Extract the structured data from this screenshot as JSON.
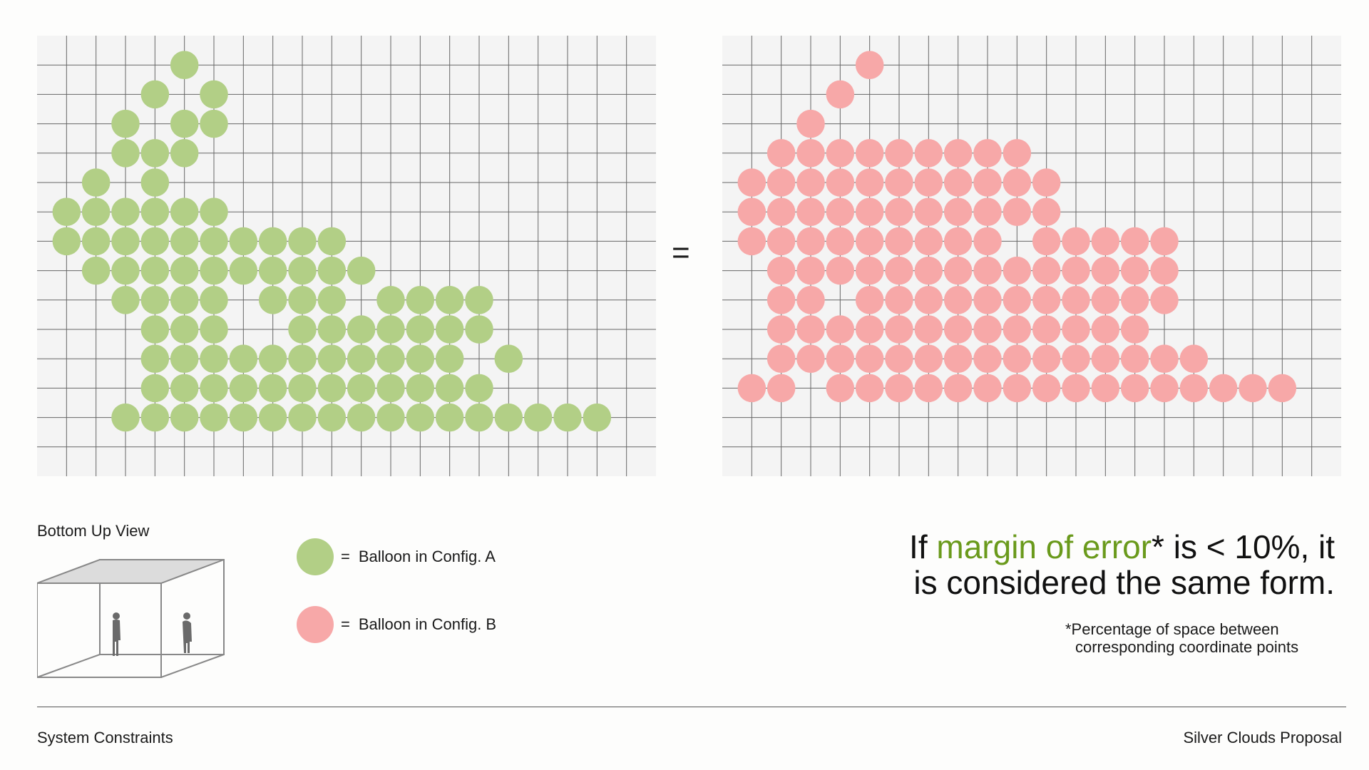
{
  "colors": {
    "config_a": "#b2cf86",
    "config_b": "#f7a8a8",
    "accent_text": "#6a9a1c",
    "grid_bg": "#f4f4f4",
    "grid_line": "#666666"
  },
  "equals_sign": "=",
  "diagram": {
    "grid_cols": 21,
    "grid_rows": 15,
    "config_a_cells": [
      [
        5,
        1
      ],
      [
        4,
        2
      ],
      [
        6,
        2
      ],
      [
        3,
        3
      ],
      [
        5,
        3
      ],
      [
        4,
        4
      ],
      [
        6,
        3
      ],
      [
        3,
        4
      ],
      [
        5,
        4
      ],
      [
        2,
        5
      ],
      [
        4,
        5
      ],
      [
        3,
        6
      ],
      [
        5,
        6
      ],
      [
        2,
        6
      ],
      [
        1,
        6
      ],
      [
        4,
        6
      ],
      [
        6,
        6
      ],
      [
        1,
        7
      ],
      [
        2,
        7
      ],
      [
        3,
        7
      ],
      [
        4,
        7
      ],
      [
        5,
        7
      ],
      [
        6,
        7
      ],
      [
        7,
        7
      ],
      [
        8,
        7
      ],
      [
        9,
        7
      ],
      [
        10,
        7
      ],
      [
        2,
        8
      ],
      [
        3,
        8
      ],
      [
        4,
        8
      ],
      [
        5,
        8
      ],
      [
        6,
        8
      ],
      [
        7,
        8
      ],
      [
        8,
        8
      ],
      [
        9,
        8
      ],
      [
        10,
        8
      ],
      [
        11,
        8
      ],
      [
        3,
        9
      ],
      [
        4,
        9
      ],
      [
        5,
        9
      ],
      [
        6,
        9
      ],
      [
        8,
        9
      ],
      [
        9,
        9
      ],
      [
        10,
        9
      ],
      [
        12,
        9
      ],
      [
        13,
        9
      ],
      [
        14,
        9
      ],
      [
        15,
        9
      ],
      [
        4,
        10
      ],
      [
        5,
        10
      ],
      [
        6,
        10
      ],
      [
        9,
        10
      ],
      [
        10,
        10
      ],
      [
        11,
        10
      ],
      [
        12,
        10
      ],
      [
        13,
        10
      ],
      [
        14,
        10
      ],
      [
        15,
        10
      ],
      [
        4,
        11
      ],
      [
        5,
        11
      ],
      [
        6,
        11
      ],
      [
        7,
        11
      ],
      [
        8,
        11
      ],
      [
        9,
        11
      ],
      [
        10,
        11
      ],
      [
        11,
        11
      ],
      [
        12,
        11
      ],
      [
        13,
        11
      ],
      [
        14,
        11
      ],
      [
        16,
        11
      ],
      [
        4,
        12
      ],
      [
        5,
        12
      ],
      [
        6,
        12
      ],
      [
        7,
        12
      ],
      [
        8,
        12
      ],
      [
        9,
        12
      ],
      [
        10,
        12
      ],
      [
        11,
        12
      ],
      [
        12,
        12
      ],
      [
        13,
        12
      ],
      [
        14,
        12
      ],
      [
        15,
        12
      ],
      [
        3,
        13
      ],
      [
        4,
        13
      ],
      [
        5,
        13
      ],
      [
        6,
        13
      ],
      [
        7,
        13
      ],
      [
        8,
        13
      ],
      [
        9,
        13
      ],
      [
        10,
        13
      ],
      [
        11,
        13
      ],
      [
        12,
        13
      ],
      [
        13,
        13
      ],
      [
        14,
        13
      ],
      [
        15,
        13
      ],
      [
        16,
        13
      ],
      [
        17,
        13
      ],
      [
        18,
        13
      ],
      [
        19,
        13
      ]
    ],
    "config_b_cells": [
      [
        5,
        1
      ],
      [
        4,
        2
      ],
      [
        3,
        3
      ],
      [
        2,
        4
      ],
      [
        3,
        4
      ],
      [
        4,
        4
      ],
      [
        5,
        4
      ],
      [
        6,
        4
      ],
      [
        7,
        4
      ],
      [
        8,
        4
      ],
      [
        9,
        4
      ],
      [
        10,
        4
      ],
      [
        1,
        5
      ],
      [
        2,
        5
      ],
      [
        3,
        5
      ],
      [
        4,
        5
      ],
      [
        5,
        5
      ],
      [
        6,
        5
      ],
      [
        7,
        5
      ],
      [
        8,
        5
      ],
      [
        9,
        5
      ],
      [
        10,
        5
      ],
      [
        11,
        5
      ],
      [
        1,
        6
      ],
      [
        2,
        6
      ],
      [
        3,
        6
      ],
      [
        4,
        6
      ],
      [
        5,
        6
      ],
      [
        6,
        6
      ],
      [
        7,
        6
      ],
      [
        8,
        6
      ],
      [
        9,
        6
      ],
      [
        10,
        6
      ],
      [
        11,
        6
      ],
      [
        1,
        7
      ],
      [
        2,
        7
      ],
      [
        3,
        7
      ],
      [
        4,
        7
      ],
      [
        5,
        7
      ],
      [
        6,
        7
      ],
      [
        7,
        7
      ],
      [
        8,
        7
      ],
      [
        9,
        7
      ],
      [
        11,
        7
      ],
      [
        12,
        7
      ],
      [
        13,
        7
      ],
      [
        14,
        7
      ],
      [
        15,
        7
      ],
      [
        2,
        8
      ],
      [
        3,
        8
      ],
      [
        4,
        8
      ],
      [
        5,
        8
      ],
      [
        6,
        8
      ],
      [
        7,
        8
      ],
      [
        8,
        8
      ],
      [
        9,
        8
      ],
      [
        10,
        8
      ],
      [
        11,
        8
      ],
      [
        12,
        8
      ],
      [
        13,
        8
      ],
      [
        14,
        8
      ],
      [
        15,
        8
      ],
      [
        2,
        9
      ],
      [
        3,
        9
      ],
      [
        5,
        9
      ],
      [
        6,
        9
      ],
      [
        7,
        9
      ],
      [
        8,
        9
      ],
      [
        9,
        9
      ],
      [
        10,
        9
      ],
      [
        11,
        9
      ],
      [
        12,
        9
      ],
      [
        13,
        9
      ],
      [
        14,
        9
      ],
      [
        15,
        9
      ],
      [
        2,
        10
      ],
      [
        3,
        10
      ],
      [
        4,
        10
      ],
      [
        5,
        10
      ],
      [
        6,
        10
      ],
      [
        7,
        10
      ],
      [
        8,
        10
      ],
      [
        9,
        10
      ],
      [
        10,
        10
      ],
      [
        11,
        10
      ],
      [
        12,
        10
      ],
      [
        13,
        10
      ],
      [
        14,
        10
      ],
      [
        2,
        11
      ],
      [
        3,
        11
      ],
      [
        4,
        11
      ],
      [
        5,
        11
      ],
      [
        6,
        11
      ],
      [
        7,
        11
      ],
      [
        8,
        11
      ],
      [
        9,
        11
      ],
      [
        10,
        11
      ],
      [
        11,
        11
      ],
      [
        12,
        11
      ],
      [
        13,
        11
      ],
      [
        14,
        11
      ],
      [
        15,
        11
      ],
      [
        16,
        11
      ],
      [
        1,
        12
      ],
      [
        2,
        12
      ],
      [
        4,
        12
      ],
      [
        5,
        12
      ],
      [
        6,
        12
      ],
      [
        7,
        12
      ],
      [
        8,
        12
      ],
      [
        9,
        12
      ],
      [
        10,
        12
      ],
      [
        11,
        12
      ],
      [
        12,
        12
      ],
      [
        13,
        12
      ],
      [
        14,
        12
      ],
      [
        15,
        12
      ],
      [
        16,
        12
      ],
      [
        17,
        12
      ],
      [
        18,
        12
      ],
      [
        19,
        12
      ]
    ]
  },
  "legend": {
    "view_label": "Bottom Up View",
    "items": [
      {
        "eq": "=",
        "label": "Balloon in Config. A"
      },
      {
        "eq": "=",
        "label": "Balloon in Config. B"
      }
    ]
  },
  "headline": {
    "pre": "If ",
    "accent": "margin of error",
    "post_line1": "* is < 10%, it",
    "line2": "is considered the same form."
  },
  "footnote": {
    "line1": "*Percentage of space between",
    "line2": "corresponding coordinate points"
  },
  "footer": {
    "left": "System Constraints",
    "right": "Silver Clouds Proposal"
  }
}
